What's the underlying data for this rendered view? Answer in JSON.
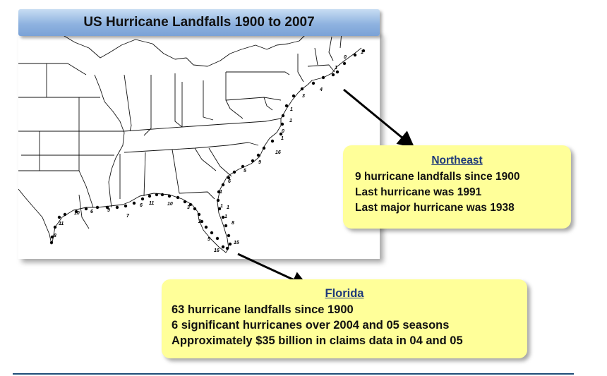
{
  "title": "US Hurricane Landfalls 1900 to 2007",
  "map": {
    "state_border_color": "#111111",
    "landfall_marker_color": "#000000",
    "landfall_counts": [
      "1",
      "0",
      "1",
      "4",
      "3",
      "1",
      "1",
      "0",
      "1",
      "16",
      "9",
      "5",
      "6",
      "1",
      "1",
      "1",
      "8",
      "15",
      "16",
      "5",
      "2",
      "3",
      "10",
      "11",
      "6",
      "7",
      "9",
      "6",
      "10",
      "11",
      "8",
      "1"
    ]
  },
  "northeast": {
    "heading": "Northeast",
    "lines": [
      "9 hurricane landfalls since 1900",
      "Last hurricane was 1991",
      "Last major hurricane was 1938"
    ]
  },
  "florida": {
    "heading": "Florida",
    "lines": [
      "63 hurricane landfalls since 1900",
      "6 significant hurricanes over 2004 and 05 seasons",
      "Approximately $35 billion in claims data in 04 and 05"
    ]
  },
  "colors": {
    "callout_fill": "#ffff99",
    "heading_color": "#1f3a7a",
    "title_bar": "#8fb3e0",
    "footer_rule": "#1f4e79"
  }
}
